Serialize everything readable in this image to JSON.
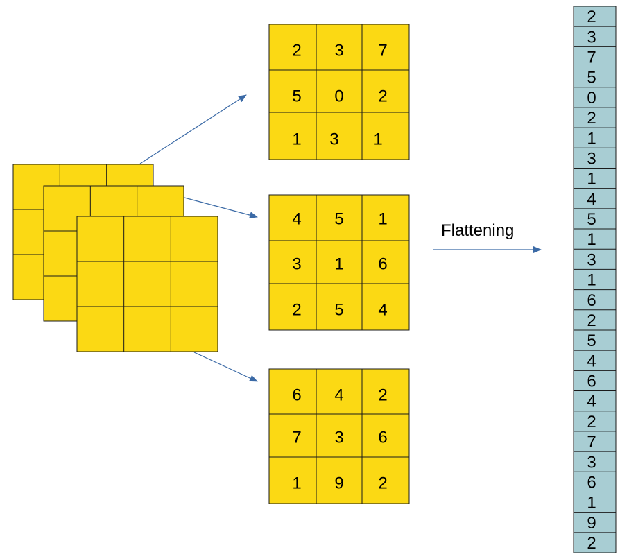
{
  "colors": {
    "cell_fill": "#FBD914",
    "cell_stroke": "#1a1a1a",
    "vector_fill": "#A8CDD3",
    "arrow": "#3B6AA6"
  },
  "label": "Flattening",
  "matrices": [
    {
      "rows": [
        [
          "2",
          "3",
          "7"
        ],
        [
          "5",
          "0",
          "2"
        ],
        [
          "1",
          "3",
          "1"
        ]
      ]
    },
    {
      "rows": [
        [
          "4",
          "5",
          "1"
        ],
        [
          "3",
          "1",
          "6"
        ],
        [
          "2",
          "5",
          "4"
        ]
      ]
    },
    {
      "rows": [
        [
          "6",
          "4",
          "2"
        ],
        [
          "7",
          "3",
          "6"
        ],
        [
          "1",
          "9",
          "2"
        ]
      ]
    }
  ],
  "vector": [
    "2",
    "3",
    "7",
    "5",
    "0",
    "2",
    "1",
    "3",
    "1",
    "4",
    "5",
    "1",
    "3",
    "1",
    "6",
    "2",
    "5",
    "4",
    "6",
    "4",
    "2",
    "7",
    "3",
    "6",
    "1",
    "9",
    "2"
  ]
}
